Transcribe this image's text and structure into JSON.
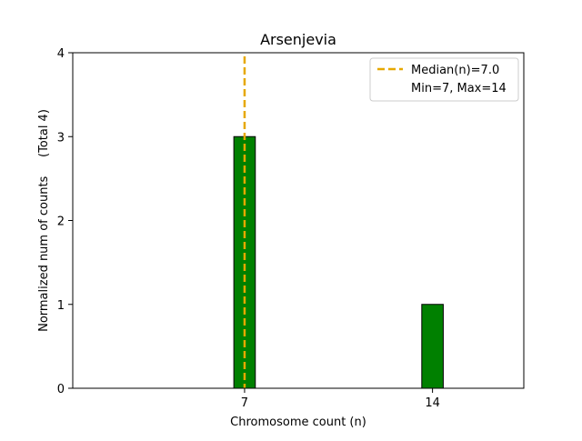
{
  "chart_data": {
    "type": "bar",
    "title": "Arsenjevia",
    "xlabel": "Chromosome count (n)",
    "ylabel": "Normalized num of counts     (Total 4)",
    "x": [
      7,
      14
    ],
    "values": [
      3,
      1
    ],
    "xticks": [
      7,
      14
    ],
    "yticks": [
      0,
      1,
      2,
      3,
      4
    ],
    "xlim": [
      0.6,
      17.4
    ],
    "ylim": [
      0,
      4
    ],
    "bar_width": 0.8,
    "bar_color": "#008000",
    "bar_edge_color": "#000000",
    "median": 7.0,
    "median_color": "#e6a800",
    "legend": {
      "position": "upper right",
      "entries": [
        "Median(n)=7.0",
        "Min=7, Max=14"
      ]
    },
    "grid": false
  }
}
